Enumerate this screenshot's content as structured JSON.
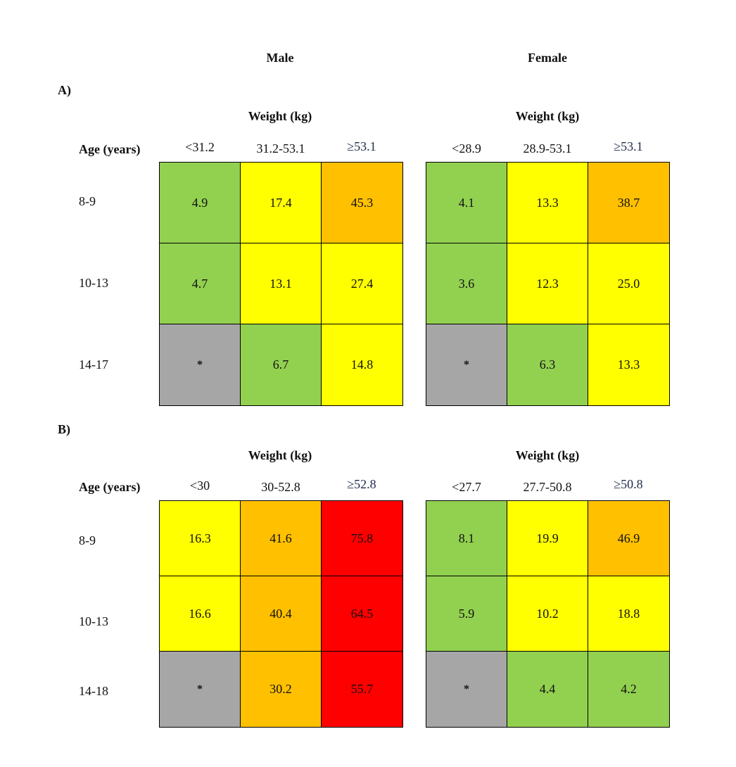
{
  "colors": {
    "green": "#92d050",
    "yellow": "#ffff00",
    "orange": "#ffc000",
    "red": "#ff0000",
    "grey": "#a6a6a6"
  },
  "headers": {
    "male": "Male",
    "female": "Female"
  },
  "panels": {
    "A": {
      "label": "A)",
      "age_title": "Age (years)",
      "male": {
        "weight_title": "Weight (kg)",
        "columns": [
          "<31.2",
          "31.2-53.1",
          "≥53.1"
        ],
        "rows": [
          "8-9",
          "10-13",
          "14-17"
        ],
        "cells": [
          [
            {
              "v": "4.9",
              "c": "green"
            },
            {
              "v": "17.4",
              "c": "yellow"
            },
            {
              "v": "45.3",
              "c": "orange"
            }
          ],
          [
            {
              "v": "4.7",
              "c": "green"
            },
            {
              "v": "13.1",
              "c": "yellow"
            },
            {
              "v": "27.4",
              "c": "yellow"
            }
          ],
          [
            {
              "v": "*",
              "c": "grey"
            },
            {
              "v": "6.7",
              "c": "green"
            },
            {
              "v": "14.8",
              "c": "yellow"
            }
          ]
        ]
      },
      "female": {
        "weight_title": "Weight (kg)",
        "columns": [
          "<28.9",
          "28.9-53.1",
          "≥53.1"
        ],
        "cells": [
          [
            {
              "v": "4.1",
              "c": "green"
            },
            {
              "v": "13.3",
              "c": "yellow"
            },
            {
              "v": "38.7",
              "c": "orange"
            }
          ],
          [
            {
              "v": "3.6",
              "c": "green"
            },
            {
              "v": "12.3",
              "c": "yellow"
            },
            {
              "v": "25.0",
              "c": "yellow"
            }
          ],
          [
            {
              "v": "*",
              "c": "grey"
            },
            {
              "v": "6.3",
              "c": "green"
            },
            {
              "v": "13.3",
              "c": "yellow"
            }
          ]
        ]
      }
    },
    "B": {
      "label": "B)",
      "age_title": "Age (years)",
      "male": {
        "weight_title": "Weight (kg)",
        "columns": [
          "<30",
          "30-52.8",
          "≥52.8"
        ],
        "rows": [
          "8-9",
          "10-13",
          "14-18"
        ],
        "cells": [
          [
            {
              "v": "16.3",
              "c": "yellow"
            },
            {
              "v": "41.6",
              "c": "orange"
            },
            {
              "v": "75.8",
              "c": "red"
            }
          ],
          [
            {
              "v": "16.6",
              "c": "yellow"
            },
            {
              "v": "40.4",
              "c": "orange"
            },
            {
              "v": "64.5",
              "c": "red"
            }
          ],
          [
            {
              "v": "*",
              "c": "grey"
            },
            {
              "v": "30.2",
              "c": "orange"
            },
            {
              "v": "55.7",
              "c": "red"
            }
          ]
        ]
      },
      "female": {
        "weight_title": "Weight (kg)",
        "columns": [
          "<27.7",
          "27.7-50.8",
          "≥50.8"
        ],
        "cells": [
          [
            {
              "v": "8.1",
              "c": "green"
            },
            {
              "v": "19.9",
              "c": "yellow"
            },
            {
              "v": "46.9",
              "c": "orange"
            }
          ],
          [
            {
              "v": "5.9",
              "c": "green"
            },
            {
              "v": "10.2",
              "c": "yellow"
            },
            {
              "v": "18.8",
              "c": "yellow"
            }
          ],
          [
            {
              "v": "*",
              "c": "grey"
            },
            {
              "v": "4.4",
              "c": "green"
            },
            {
              "v": "4.2",
              "c": "green"
            }
          ]
        ]
      }
    }
  },
  "chart_data": {
    "type": "heatmap",
    "panels": [
      {
        "label": "A)",
        "row_label": "Age (years)",
        "rows": [
          "8-9",
          "10-13",
          "14-17"
        ],
        "groups": [
          {
            "name": "Male",
            "column_label": "Weight (kg)",
            "columns": [
              "<31.2",
              "31.2-53.1",
              "≥53.1"
            ],
            "values": [
              [
                4.9,
                17.4,
                45.3
              ],
              [
                4.7,
                13.1,
                27.4
              ],
              [
                null,
                6.7,
                14.8
              ]
            ]
          },
          {
            "name": "Female",
            "column_label": "Weight (kg)",
            "columns": [
              "<28.9",
              "28.9-53.1",
              "≥53.1"
            ],
            "values": [
              [
                4.1,
                13.3,
                38.7
              ],
              [
                3.6,
                12.3,
                25.0
              ],
              [
                null,
                6.3,
                13.3
              ]
            ]
          }
        ]
      },
      {
        "label": "B)",
        "row_label": "Age (years)",
        "rows": [
          "8-9",
          "10-13",
          "14-18"
        ],
        "groups": [
          {
            "name": "Male",
            "column_label": "Weight (kg)",
            "columns": [
              "<30",
              "30-52.8",
              "≥52.8"
            ],
            "values": [
              [
                16.3,
                41.6,
                75.8
              ],
              [
                16.6,
                40.4,
                64.5
              ],
              [
                null,
                30.2,
                55.7
              ]
            ]
          },
          {
            "name": "Female",
            "column_label": "Weight (kg)",
            "columns": [
              "<27.7",
              "27.7-50.8",
              "≥50.8"
            ],
            "values": [
              [
                8.1,
                19.9,
                46.9
              ],
              [
                5.9,
                10.2,
                18.8
              ],
              [
                null,
                4.4,
                4.2
              ]
            ]
          }
        ]
      }
    ]
  }
}
